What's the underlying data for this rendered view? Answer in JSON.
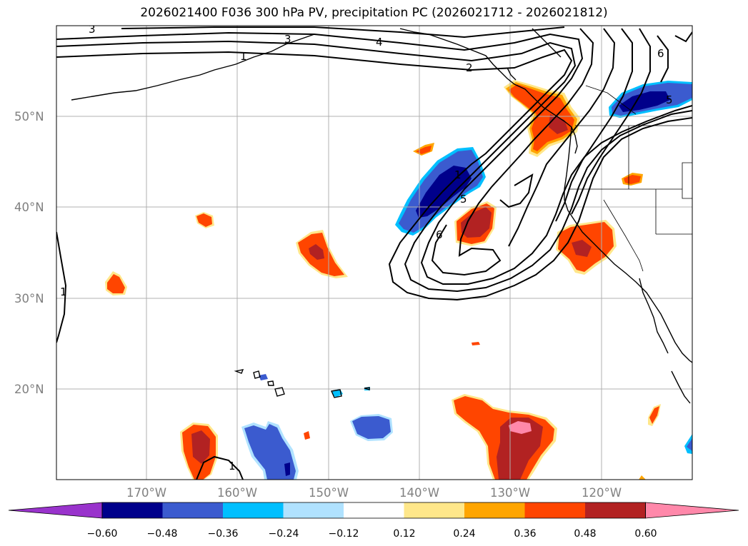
{
  "title": "2026021400 F036 300 hPa PV, precipitation PC (2026021712 - 2026021812)",
  "lat_labels": [
    "50°N",
    "40°N",
    "30°N",
    "20°N"
  ],
  "lon_labels": [
    "170°W",
    "160°W",
    "150°W",
    "140°W",
    "130°W",
    "120°W"
  ],
  "colorbar": {
    "tick_labels": [
      "−0.60",
      "−0.48",
      "−0.36",
      "−0.24",
      "−0.12",
      "0.12",
      "0.24",
      "0.36",
      "0.48",
      "0.60"
    ],
    "colors": [
      "#9933cc",
      "#00008b",
      "#3b5bcf",
      "#00bfff",
      "#b0e2ff",
      "#ffffff",
      "#ffe78a",
      "#ffa500",
      "#ff4500",
      "#b22222",
      "#ff88aa"
    ]
  },
  "contour_labels": [
    "3",
    "3",
    "4",
    "1",
    "2",
    "6",
    "5",
    "1",
    "5",
    "6",
    "1",
    "1"
  ],
  "colors": {
    "grid": "#b0b0b0",
    "coast": "#000000",
    "pv_contour": "#000000"
  }
}
